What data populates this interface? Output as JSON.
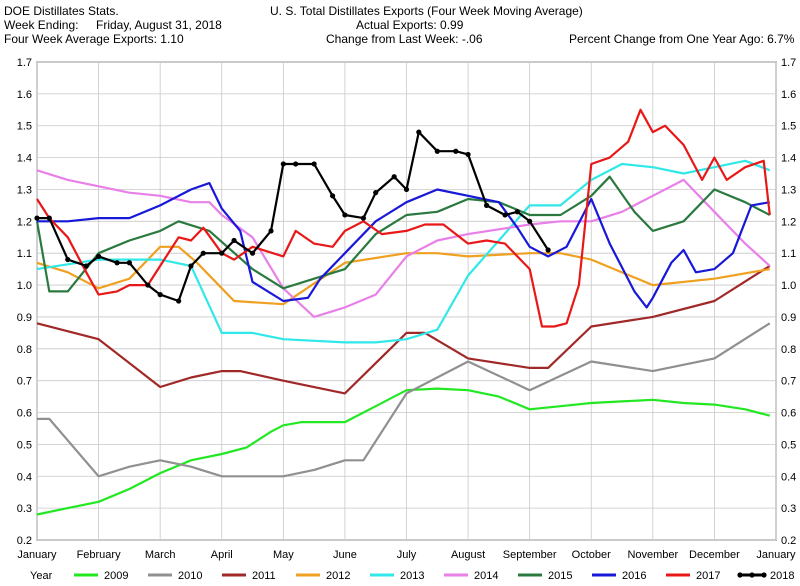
{
  "header": {
    "source": "DOE Distillates Stats.",
    "week_label": "Week Ending:",
    "week_value": "Friday, August 31, 2018",
    "avg_exports": "Four Week Average Exports: 1.10",
    "title": "U. S. Total Distillates Exports (Four Week Moving Average)",
    "actual_exports": "Actual Exports: 0.99",
    "change": "Change from Last Week: -.06",
    "pct_change": "Percent Change from One Year Ago:  6.7%"
  },
  "chart_data": {
    "type": "line",
    "title": "U. S. Total Distillates Exports (Four Week Moving Average)",
    "xlabel": "",
    "ylabel": "",
    "ylim": [
      0.2,
      1.7
    ],
    "yticks": [
      "0.2",
      "0.3",
      "0.4",
      "0.5",
      "0.6",
      "0.7",
      "0.8",
      "0.9",
      "1.0",
      "1.1",
      "1.2",
      "1.3",
      "1.4",
      "1.5",
      "1.6",
      "1.7"
    ],
    "xticks": [
      "January",
      "February",
      "March",
      "April",
      "May",
      "June",
      "July",
      "August",
      "September",
      "October",
      "November",
      "December",
      "January"
    ],
    "x_range": [
      1,
      13
    ],
    "grid": true,
    "legend_position": "bottom",
    "legend_title": "Year",
    "series": [
      {
        "name": "2009",
        "color": "#22e822",
        "markers": false,
        "x": [
          1.0,
          1.5,
          2.0,
          2.5,
          3.0,
          3.5,
          4.0,
          4.4,
          4.8,
          5.0,
          5.3,
          5.6,
          6.0,
          6.5,
          7.0,
          7.5,
          8.0,
          8.5,
          9.0,
          9.5,
          10.0,
          10.5,
          11.0,
          11.5,
          12.0,
          12.5,
          12.9
        ],
        "y": [
          0.28,
          0.3,
          0.32,
          0.36,
          0.41,
          0.45,
          0.47,
          0.49,
          0.54,
          0.56,
          0.57,
          0.57,
          0.57,
          0.62,
          0.67,
          0.675,
          0.67,
          0.65,
          0.61,
          0.62,
          0.63,
          0.635,
          0.64,
          0.63,
          0.625,
          0.61,
          0.59
        ]
      },
      {
        "name": "2010",
        "color": "#909090",
        "markers": false,
        "x": [
          1.0,
          1.2,
          2.0,
          2.5,
          3.0,
          3.5,
          4.0,
          4.5,
          5.0,
          5.5,
          6.0,
          6.3,
          7.0,
          8.0,
          9.0,
          10.0,
          11.0,
          12.0,
          12.9
        ],
        "y": [
          0.58,
          0.58,
          0.4,
          0.43,
          0.45,
          0.43,
          0.4,
          0.4,
          0.4,
          0.42,
          0.45,
          0.45,
          0.66,
          0.76,
          0.67,
          0.76,
          0.73,
          0.77,
          0.88
        ]
      },
      {
        "name": "2011",
        "color": "#a02828",
        "markers": false,
        "x": [
          1.0,
          2.0,
          3.0,
          3.5,
          4.0,
          4.3,
          5.0,
          6.0,
          7.0,
          7.3,
          8.0,
          9.0,
          9.3,
          10.0,
          11.0,
          12.0,
          12.9
        ],
        "y": [
          0.88,
          0.83,
          0.68,
          0.71,
          0.73,
          0.73,
          0.7,
          0.66,
          0.85,
          0.85,
          0.77,
          0.74,
          0.74,
          0.87,
          0.9,
          0.95,
          1.06
        ]
      },
      {
        "name": "2012",
        "color": "#f0a020",
        "markers": false,
        "x": [
          1.0,
          1.5,
          2.0,
          2.5,
          3.0,
          3.3,
          3.6,
          4.0,
          4.2,
          5.0,
          6.0,
          7.0,
          7.5,
          8.0,
          9.0,
          9.5,
          10.0,
          11.0,
          12.0,
          12.9
        ],
        "y": [
          1.07,
          1.04,
          0.99,
          1.02,
          1.12,
          1.12,
          1.07,
          0.99,
          0.95,
          0.94,
          1.07,
          1.1,
          1.1,
          1.09,
          1.1,
          1.1,
          1.08,
          1.0,
          1.02,
          1.05
        ]
      },
      {
        "name": "2013",
        "color": "#30e8e8",
        "markers": false,
        "x": [
          1.0,
          2.0,
          2.5,
          3.0,
          3.5,
          4.0,
          4.5,
          5.0,
          6.0,
          6.5,
          7.0,
          7.5,
          8.0,
          9.0,
          9.2,
          9.5,
          10.0,
          10.5,
          11.0,
          11.5,
          12.0,
          12.5,
          12.9
        ],
        "y": [
          1.05,
          1.08,
          1.08,
          1.08,
          1.06,
          0.85,
          0.85,
          0.83,
          0.82,
          0.82,
          0.83,
          0.86,
          1.03,
          1.25,
          1.25,
          1.25,
          1.33,
          1.38,
          1.37,
          1.35,
          1.37,
          1.39,
          1.36
        ]
      },
      {
        "name": "2014",
        "color": "#e880e8",
        "markers": false,
        "x": [
          1.0,
          1.5,
          2.0,
          2.5,
          3.0,
          3.5,
          3.8,
          4.0,
          4.5,
          5.0,
          5.5,
          6.0,
          6.5,
          7.0,
          7.5,
          8.0,
          9.0,
          9.5,
          10.0,
          10.5,
          11.0,
          11.5,
          12.0,
          12.5,
          12.9
        ],
        "y": [
          1.36,
          1.33,
          1.31,
          1.29,
          1.28,
          1.26,
          1.26,
          1.22,
          1.15,
          0.99,
          0.9,
          0.93,
          0.97,
          1.09,
          1.14,
          1.16,
          1.19,
          1.2,
          1.2,
          1.23,
          1.28,
          1.33,
          1.23,
          1.13,
          1.06
        ]
      },
      {
        "name": "2015",
        "color": "#2a7a40",
        "markers": false,
        "x": [
          1.0,
          1.2,
          1.5,
          2.0,
          2.5,
          3.0,
          3.3,
          3.8,
          4.5,
          5.0,
          5.5,
          6.0,
          6.5,
          7.0,
          7.5,
          8.0,
          8.5,
          9.0,
          9.5,
          10.0,
          10.3,
          10.7,
          11.0,
          11.5,
          12.0,
          12.5,
          12.9
        ],
        "y": [
          1.2,
          0.98,
          0.98,
          1.1,
          1.14,
          1.17,
          1.2,
          1.17,
          1.05,
          0.99,
          1.02,
          1.05,
          1.16,
          1.22,
          1.23,
          1.27,
          1.26,
          1.22,
          1.22,
          1.28,
          1.34,
          1.23,
          1.17,
          1.2,
          1.3,
          1.26,
          1.22
        ]
      },
      {
        "name": "2016",
        "color": "#1818d8",
        "markers": false,
        "x": [
          1.0,
          1.5,
          2.0,
          2.5,
          3.0,
          3.5,
          3.8,
          4.0,
          4.3,
          4.5,
          5.0,
          5.4,
          5.6,
          6.0,
          6.5,
          7.0,
          7.5,
          8.0,
          8.5,
          8.8,
          9.0,
          9.3,
          9.6,
          10.0,
          10.3,
          10.7,
          10.9,
          11.0,
          11.3,
          11.5,
          11.7,
          12.0,
          12.3,
          12.6,
          12.9
        ],
        "y": [
          1.2,
          1.2,
          1.21,
          1.21,
          1.25,
          1.3,
          1.32,
          1.24,
          1.17,
          1.01,
          0.95,
          0.96,
          1.02,
          1.1,
          1.2,
          1.26,
          1.3,
          1.28,
          1.26,
          1.18,
          1.12,
          1.09,
          1.12,
          1.27,
          1.13,
          0.98,
          0.93,
          0.96,
          1.07,
          1.11,
          1.04,
          1.05,
          1.1,
          1.25,
          1.26
        ]
      },
      {
        "name": "2017",
        "color": "#e81818",
        "markers": false,
        "x": [
          1.0,
          1.2,
          1.5,
          1.8,
          2.0,
          2.3,
          2.5,
          2.8,
          3.0,
          3.3,
          3.5,
          3.7,
          4.0,
          4.2,
          4.5,
          5.0,
          5.2,
          5.5,
          5.8,
          6.0,
          6.3,
          6.6,
          7.0,
          7.3,
          7.6,
          8.0,
          8.3,
          8.6,
          9.0,
          9.2,
          9.4,
          9.6,
          9.8,
          10.0,
          10.3,
          10.6,
          10.8,
          11.0,
          11.2,
          11.5,
          11.8,
          12.0,
          12.2,
          12.5,
          12.8,
          12.9
        ],
        "y": [
          1.27,
          1.21,
          1.15,
          1.04,
          0.97,
          0.98,
          1.0,
          1.0,
          1.06,
          1.15,
          1.14,
          1.18,
          1.1,
          1.08,
          1.12,
          1.09,
          1.17,
          1.13,
          1.12,
          1.17,
          1.2,
          1.16,
          1.17,
          1.19,
          1.19,
          1.13,
          1.14,
          1.13,
          1.05,
          0.87,
          0.87,
          0.88,
          1.0,
          1.38,
          1.4,
          1.45,
          1.55,
          1.48,
          1.5,
          1.44,
          1.33,
          1.4,
          1.33,
          1.37,
          1.39,
          1.22
        ]
      },
      {
        "name": "2018",
        "color": "#000000",
        "markers": true,
        "x": [
          1.0,
          1.2,
          1.5,
          1.8,
          2.0,
          2.3,
          2.5,
          2.8,
          3.0,
          3.3,
          3.5,
          3.7,
          4.0,
          4.2,
          4.5,
          4.8,
          5.0,
          5.2,
          5.5,
          5.8,
          6.0,
          6.3,
          6.5,
          6.8,
          7.0,
          7.2,
          7.5,
          7.8,
          8.0,
          8.3,
          8.6,
          8.8,
          9.0,
          9.3
        ],
        "y": [
          1.21,
          1.21,
          1.08,
          1.06,
          1.09,
          1.07,
          1.07,
          1.0,
          0.97,
          0.95,
          1.06,
          1.1,
          1.1,
          1.14,
          1.1,
          1.17,
          1.38,
          1.38,
          1.38,
          1.28,
          1.22,
          1.21,
          1.29,
          1.34,
          1.3,
          1.48,
          1.42,
          1.42,
          1.41,
          1.25,
          1.22,
          1.23,
          1.2,
          1.11
        ]
      }
    ]
  }
}
